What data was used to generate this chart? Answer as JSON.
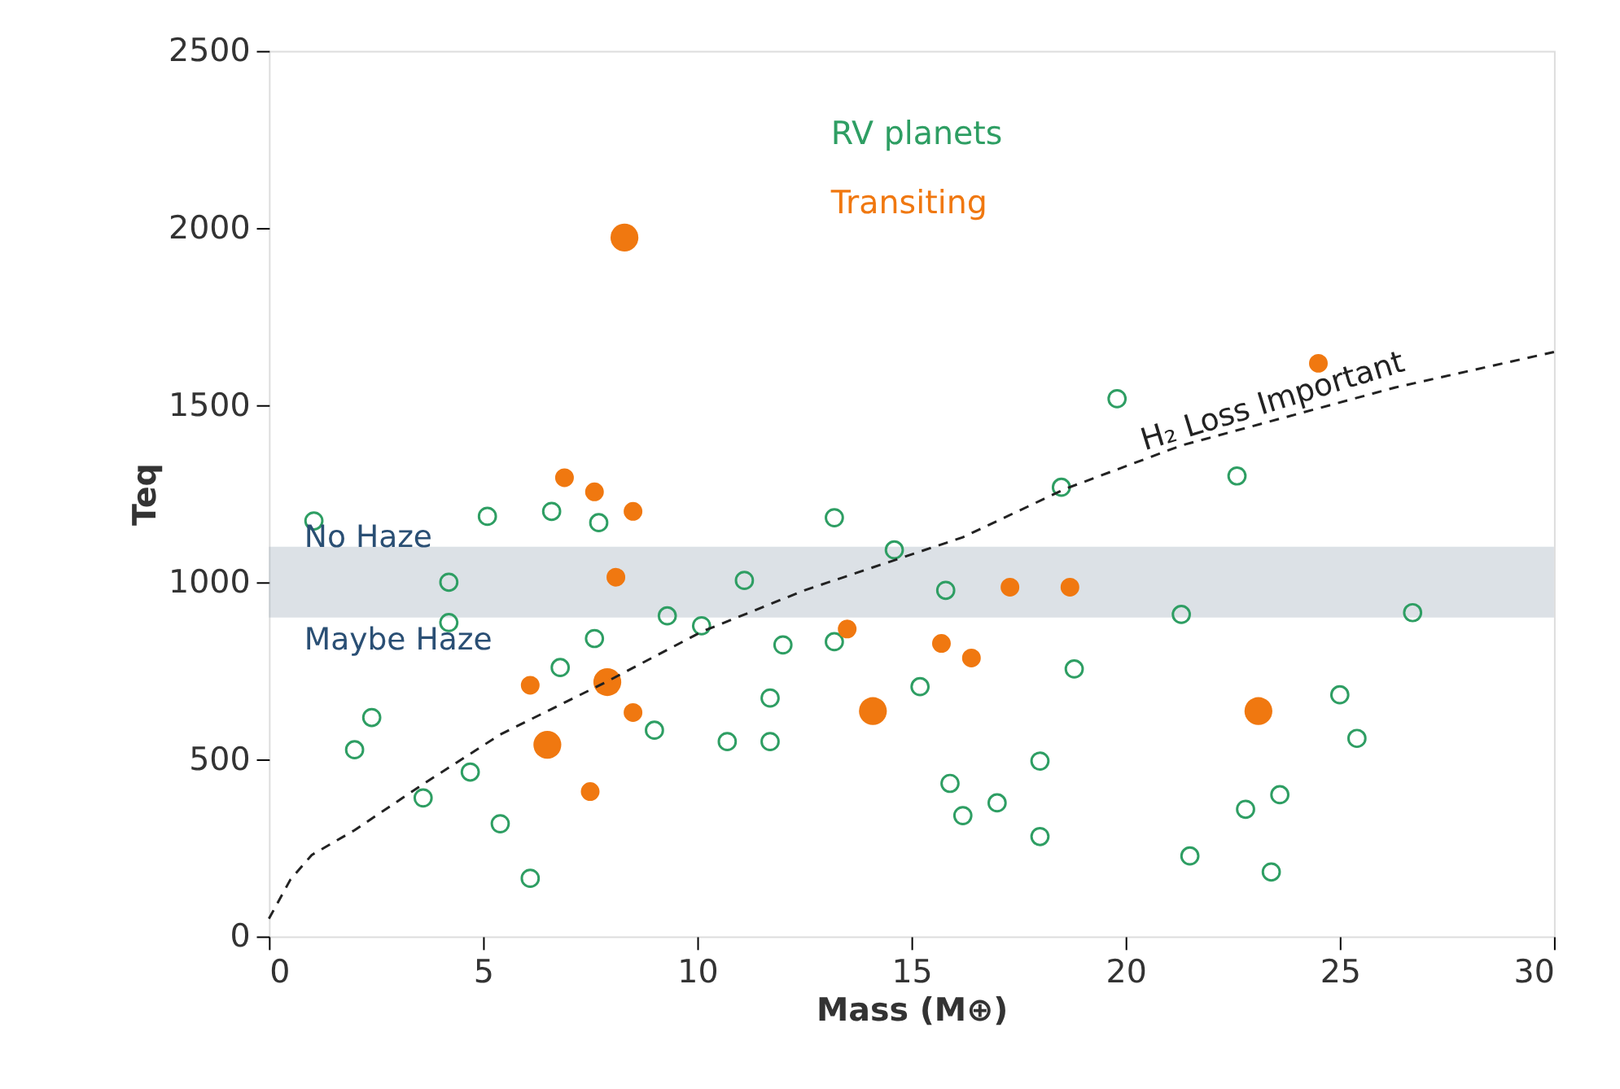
{
  "chart_data": {
    "type": "scatter",
    "xlabel": "Mass (M⊕)",
    "ylabel": "Teq",
    "xlim": [
      0,
      30
    ],
    "ylim": [
      0,
      2500
    ],
    "xticks": [
      0,
      5,
      10,
      15,
      20,
      25,
      30
    ],
    "yticks": [
      0,
      500,
      1000,
      1500,
      2000,
      2500
    ],
    "grid": false,
    "legend": "top",
    "series": [
      {
        "name": "RV planets",
        "color": "#2e9e63",
        "marker": "circle",
        "x": [
          1.05,
          5.1,
          6.6,
          7.7,
          4.2,
          4.2,
          7.6,
          6.8,
          2.4,
          2.0,
          4.7,
          3.6,
          5.4,
          6.1,
          9.0,
          10.7,
          9.3,
          10.1,
          13.2,
          11.1,
          12.0,
          11.7,
          11.7,
          14.6,
          13.2,
          15.8,
          15.2,
          18.5,
          18.8,
          18.0,
          15.9,
          16.2,
          17.0,
          18.0,
          22.6,
          21.3,
          26.7,
          25.0,
          25.4,
          23.6,
          22.8,
          21.5,
          23.4,
          19.8
        ],
        "values": [
          1173,
          1186,
          1200,
          1168,
          1000,
          886,
          841,
          759,
          618,
          527,
          464,
          391,
          318,
          164,
          582,
          550,
          905,
          877,
          1182,
          1005,
          823,
          673,
          550,
          1091,
          832,
          977,
          705,
          1268,
          755,
          495,
          432,
          341,
          377,
          282,
          1300,
          909,
          914,
          682,
          559,
          400,
          359,
          227,
          182,
          1518
        ]
      },
      {
        "name": "Transiting",
        "color": "#f07810",
        "type": "bubble",
        "x": [
          6.9,
          7.6,
          8.5,
          8.1,
          6.1,
          7.9,
          8.5,
          6.5,
          7.5,
          13.5,
          14.1,
          15.7,
          16.4,
          17.3,
          18.7,
          24.5,
          23.1,
          8.3
        ],
        "values": [
          1295,
          1255,
          1200,
          1014,
          709,
          718,
          632,
          541,
          409,
          868,
          636,
          827,
          786,
          986,
          986,
          1618,
          636,
          1973
        ],
        "sizes": [
          0.45,
          0.45,
          0.45,
          0.45,
          0.45,
          1,
          0.45,
          1,
          0.45,
          0.45,
          1,
          0.45,
          0.45,
          0.45,
          0.45,
          0.45,
          1,
          1
        ]
      },
      {
        "type": "line",
        "color": "#222222",
        "line_style": "dashed",
        "marker": "none",
        "x": [
          0,
          0.5,
          1,
          2,
          3.6,
          5.4,
          7.9,
          10.1,
          12.5,
          16.2,
          18.6,
          21.3,
          26.3,
          30
        ],
        "values": [
          50,
          160,
          230,
          300,
          430,
          570,
          720,
          860,
          977,
          1127,
          1264,
          1386,
          1550,
          1650
        ]
      }
    ],
    "bands": [
      {
        "axis": "y",
        "from": 900,
        "to": 1100,
        "color": "#9aa8b8"
      }
    ],
    "annotations": [
      "No Haze",
      "Maybe Haze",
      "H₂ Loss Important"
    ]
  }
}
